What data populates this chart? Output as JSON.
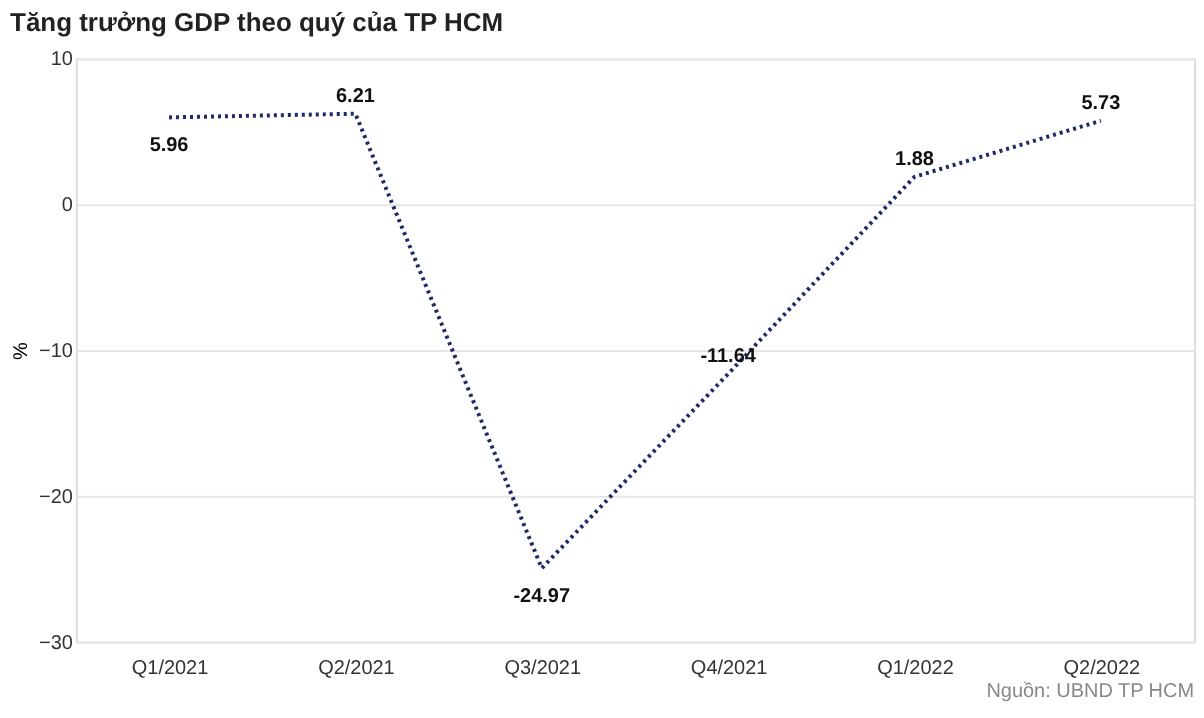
{
  "chart_data": {
    "type": "line",
    "title": "Tăng trưởng GDP theo quý của TP HCM",
    "ylabel": "%",
    "categories": [
      "Q1/2021",
      "Q2/2021",
      "Q3/2021",
      "Q4/2021",
      "Q1/2022",
      "Q2/2022"
    ],
    "series": [
      {
        "color": "#1f2a6b",
        "values": [
          5.96,
          6.21,
          -24.97,
          -11.64,
          1.88,
          5.73
        ]
      }
    ],
    "ylim": [
      -30,
      10
    ],
    "yticks": [
      -30,
      -20,
      -10,
      0,
      10
    ],
    "grid": "y",
    "data_labels": true,
    "line_style": "dotted",
    "marker": "none",
    "annotations": [
      "Nguồn: UBND TP HCM"
    ]
  }
}
